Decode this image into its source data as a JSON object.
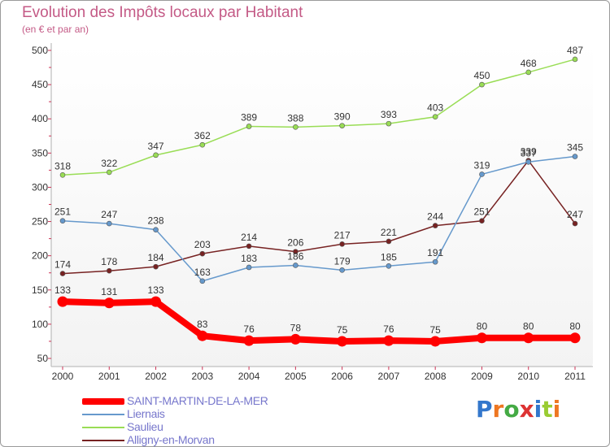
{
  "title": "Evolution des Impôts locaux par Habitant",
  "subtitle": "(en € et par an)",
  "logo_text": "Proxiti",
  "chart_data": {
    "type": "line",
    "title": "Evolution des Impôts locaux par Habitant",
    "subtitle": "(en € et par an)",
    "xlabel": "",
    "ylabel": "",
    "categories": [
      "2000",
      "2001",
      "2002",
      "2003",
      "2004",
      "2005",
      "2006",
      "2007",
      "2008",
      "2009",
      "2010",
      "2011"
    ],
    "ylim": [
      50,
      500
    ],
    "yticks": [
      50,
      100,
      150,
      200,
      250,
      300,
      350,
      400,
      450,
      500
    ],
    "grid": false,
    "legend_position": "bottom-left",
    "series": [
      {
        "name": "SAINT-MARTIN-DE-LA-MER",
        "color": "#ff0000",
        "values": [
          133,
          131,
          133,
          83,
          76,
          78,
          75,
          76,
          75,
          80,
          80,
          80
        ]
      },
      {
        "name": "Liernais",
        "color": "#6699cc",
        "values": [
          251,
          247,
          238,
          163,
          183,
          186,
          179,
          185,
          191,
          319,
          337,
          345
        ]
      },
      {
        "name": "Saulieu",
        "color": "#99dd55",
        "values": [
          318,
          322,
          347,
          362,
          389,
          388,
          390,
          393,
          403,
          450,
          468,
          487
        ]
      },
      {
        "name": "Alligny-en-Morvan",
        "color": "#772222",
        "values": [
          174,
          178,
          184,
          203,
          214,
          206,
          217,
          221,
          244,
          251,
          339,
          247
        ]
      }
    ]
  }
}
